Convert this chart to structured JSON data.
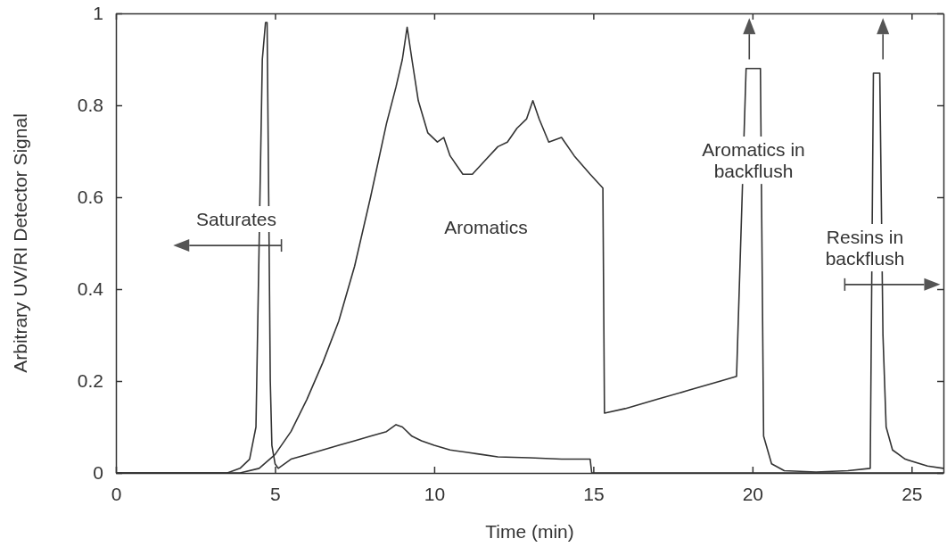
{
  "chart_data": {
    "type": "line",
    "xlabel": "Time (min)",
    "ylabel": "Arbitrary UV/RI Detector Signal",
    "xlim": [
      0,
      26
    ],
    "ylim": [
      0,
      1
    ],
    "xticks": [
      0,
      5,
      10,
      15,
      20,
      25
    ],
    "yticks": [
      0,
      0.2,
      0.4,
      0.6,
      0.8,
      1
    ],
    "grid": false,
    "line_style": "solid",
    "marker": "none",
    "series": [
      {
        "color": "#333333",
        "x": [
          0,
          3.5,
          3.9,
          4.2,
          4.4,
          4.5,
          4.6,
          4.7,
          4.75,
          4.8,
          4.85,
          4.9,
          5.0,
          5.1,
          5.5,
          6,
          6.5,
          7,
          7.5,
          8,
          8.5,
          8.8,
          9.0,
          9.3,
          9.6,
          10,
          10.5,
          11,
          11.5,
          12,
          13,
          14,
          14.9,
          14.95,
          15.5,
          20,
          26
        ],
        "values": [
          0,
          0,
          0.01,
          0.03,
          0.1,
          0.5,
          0.9,
          0.98,
          0.98,
          0.6,
          0.2,
          0.06,
          0.02,
          0.01,
          0.03,
          0.04,
          0.05,
          0.06,
          0.07,
          0.08,
          0.09,
          0.105,
          0.1,
          0.08,
          0.07,
          0.06,
          0.05,
          0.045,
          0.04,
          0.035,
          0.033,
          0.03,
          0.03,
          0,
          0,
          0,
          0
        ]
      },
      {
        "color": "#333333",
        "x": [
          0,
          3.9,
          4.5,
          5,
          5.5,
          6,
          6.5,
          7,
          7.5,
          8,
          8.5,
          8.8,
          9.0,
          9.15,
          9.3,
          9.5,
          9.8,
          10.1,
          10.3,
          10.5,
          10.9,
          11.2,
          11.6,
          12.0,
          12.3,
          12.6,
          12.9,
          13.1,
          13.3,
          13.6,
          14.0,
          14.4,
          14.9,
          15.3,
          15.35,
          16,
          17,
          18,
          19,
          19.5,
          19.8,
          20.25,
          20.35,
          20.6,
          21,
          22,
          23,
          23.7,
          23.8,
          24.0,
          24.1,
          24.2,
          24.4,
          24.8,
          25.5,
          26
        ],
        "values": [
          0,
          0,
          0.01,
          0.04,
          0.09,
          0.16,
          0.24,
          0.33,
          0.45,
          0.6,
          0.76,
          0.84,
          0.9,
          0.97,
          0.9,
          0.81,
          0.74,
          0.72,
          0.73,
          0.69,
          0.65,
          0.65,
          0.68,
          0.71,
          0.72,
          0.75,
          0.77,
          0.81,
          0.77,
          0.72,
          0.73,
          0.69,
          0.65,
          0.62,
          0.13,
          0.14,
          0.16,
          0.18,
          0.2,
          0.21,
          0.88,
          0.88,
          0.08,
          0.02,
          0.005,
          0.002,
          0.005,
          0.01,
          0.87,
          0.87,
          0.3,
          0.1,
          0.05,
          0.03,
          0.015,
          0.01
        ]
      }
    ],
    "annotations": [
      "Saturates",
      "Aromatics",
      "Aromatics in\nbackflush",
      "Resins in\nbackflush"
    ]
  }
}
